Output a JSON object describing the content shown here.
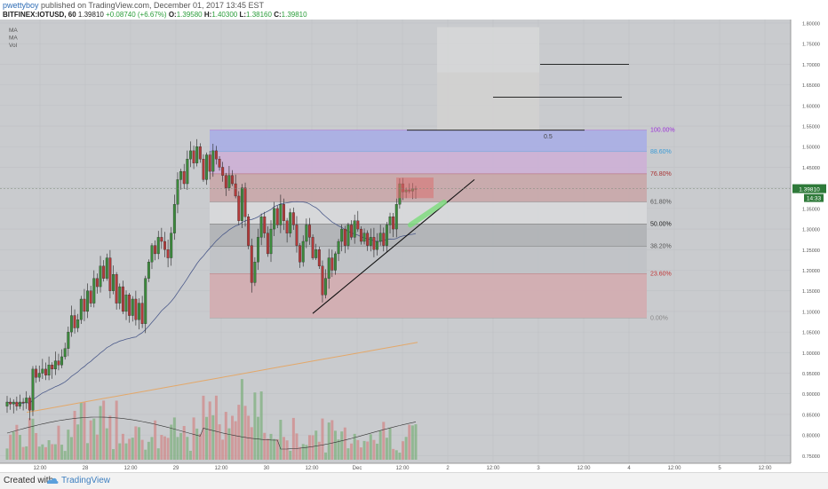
{
  "header": {
    "author": "pwettyboy",
    "published_text": "published on TradingView.com, December 01, 2017 13:45 EST",
    "symbol": "BITFINEX:IOTUSD, 60",
    "last": "1.39810",
    "change": "+0.08740 (+6.67%)",
    "o_label": "O:",
    "o_value": "1.39580",
    "h_label": "H:",
    "h_value": "1.40300",
    "l_label": "L:",
    "l_value": "1.38160",
    "c_label": "C:",
    "c_value": "1.39810"
  },
  "indicators": [
    "MA",
    "MA",
    "Vol"
  ],
  "footer": {
    "created_with": "Created with",
    "brand": "TradingView"
  },
  "chart_data": {
    "type": "candlestick",
    "symbol": "BITFINEX:IOTUSD",
    "interval": "60",
    "ylim": [
      0.74,
      1.8
    ],
    "price_axis_ticks": [
      "1.80000",
      "1.75000",
      "1.70000",
      "1.65000",
      "1.60000",
      "1.55000",
      "1.50000",
      "1.45000",
      "1.40000",
      "1.35000",
      "1.30000",
      "1.25000",
      "1.20000",
      "1.15000",
      "1.10000",
      "1.05000",
      "1.00000",
      "0.95000",
      "0.90000",
      "0.85000",
      "0.80000",
      "0.75000"
    ],
    "time_axis_ticks": [
      "12:00",
      "28",
      "12:00",
      "29",
      "12:00",
      "30",
      "12:00",
      "Dec",
      "12:00",
      "2",
      "12:00",
      "3",
      "12:00",
      "4",
      "12:00",
      "5",
      "12:00"
    ],
    "last_price_label": "1.39810",
    "countdown_label": "14:33",
    "closes": [
      0.88,
      0.875,
      0.88,
      0.87,
      0.88,
      0.878,
      0.89,
      0.86,
      0.96,
      0.94,
      0.95,
      0.96,
      0.945,
      0.97,
      0.96,
      0.98,
      0.97,
      0.99,
      1.01,
      1.05,
      1.09,
      1.06,
      1.08,
      1.13,
      1.1,
      1.15,
      1.12,
      1.18,
      1.16,
      1.21,
      1.18,
      1.23,
      1.15,
      1.19,
      1.12,
      1.16,
      1.1,
      1.14,
      1.09,
      1.13,
      1.08,
      1.12,
      1.07,
      1.18,
      1.22,
      1.26,
      1.24,
      1.28,
      1.27,
      1.25,
      1.23,
      1.29,
      1.36,
      1.42,
      1.44,
      1.41,
      1.47,
      1.49,
      1.46,
      1.5,
      1.47,
      1.42,
      1.48,
      1.44,
      1.49,
      1.47,
      1.45,
      1.43,
      1.4,
      1.43,
      1.41,
      1.38,
      1.32,
      1.4,
      1.33,
      1.26,
      1.17,
      1.22,
      1.28,
      1.33,
      1.29,
      1.24,
      1.3,
      1.35,
      1.31,
      1.36,
      1.32,
      1.29,
      1.34,
      1.31,
      1.26,
      1.22,
      1.27,
      1.31,
      1.28,
      1.23,
      1.25,
      1.21,
      1.14,
      1.18,
      1.23,
      1.2,
      1.24,
      1.27,
      1.3,
      1.26,
      1.31,
      1.28,
      1.32,
      1.3,
      1.27,
      1.29,
      1.26,
      1.28,
      1.25,
      1.27,
      1.29,
      1.26,
      1.31,
      1.33,
      1.3,
      1.36,
      1.41,
      1.39,
      1.395,
      1.392,
      1.398,
      1.398
    ],
    "volume_ticks_hint": "volume bars along bottom, green/red by candle direction",
    "fibonacci": {
      "levels": [
        {
          "ratio": "100.00%",
          "price": 1.54,
          "label_color": "#9b30d8"
        },
        {
          "ratio": "88.60%",
          "price": 1.488,
          "label_color": "#3a9bd6"
        },
        {
          "ratio": "76.80%",
          "price": 1.434,
          "label_color": "#a83232"
        },
        {
          "ratio": "61.80%",
          "price": 1.366,
          "label_color": "#555555"
        },
        {
          "ratio": "50.00%",
          "price": 1.312,
          "label_color": "#222222"
        },
        {
          "ratio": "38.20%",
          "price": 1.258,
          "label_color": "#555555"
        },
        {
          "ratio": "23.60%",
          "price": 1.191,
          "label_color": "#c03535"
        },
        {
          "ratio": "0.00%",
          "price": 1.084,
          "label_color": "#888888"
        }
      ]
    },
    "annotations": [
      {
        "type": "trendline",
        "from": [
          1.095
        ],
        "to": [
          1.42
        ]
      },
      {
        "type": "text",
        "label": "0.5"
      },
      {
        "type": "projection-lines",
        "prices": [
          1.54,
          1.62,
          1.7
        ]
      }
    ],
    "grid": true
  }
}
